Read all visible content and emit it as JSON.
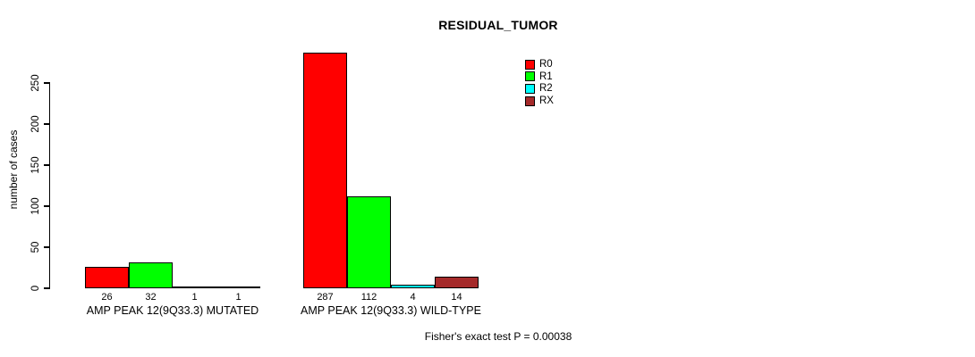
{
  "chart_data": {
    "type": "bar",
    "title": "RESIDUAL_TUMOR",
    "ylabel": "number of cases",
    "xlabel": "",
    "yticks": [
      0,
      50,
      100,
      150,
      200,
      250
    ],
    "ylim": [
      0,
      250
    ],
    "grid": false,
    "legend_position": "top-right",
    "categories": [
      "AMP PEAK 12(9Q33.3) MUTATED",
      "AMP PEAK 12(9Q33.3) WILD-TYPE"
    ],
    "series": [
      {
        "name": "R0",
        "color": "#FF0000",
        "values": [
          26,
          287
        ]
      },
      {
        "name": "R1",
        "color": "#00FF00",
        "values": [
          32,
          112
        ]
      },
      {
        "name": "R2",
        "color": "#00FFFF",
        "values": [
          1,
          4
        ]
      },
      {
        "name": "RX",
        "color": "#A52A2A",
        "values": [
          1,
          14
        ]
      }
    ],
    "bar_value_labels": [
      [
        26,
        32,
        1,
        1
      ],
      [
        287,
        112,
        4,
        14
      ]
    ],
    "annotation": "Fisher's exact test P = 0.00038"
  }
}
